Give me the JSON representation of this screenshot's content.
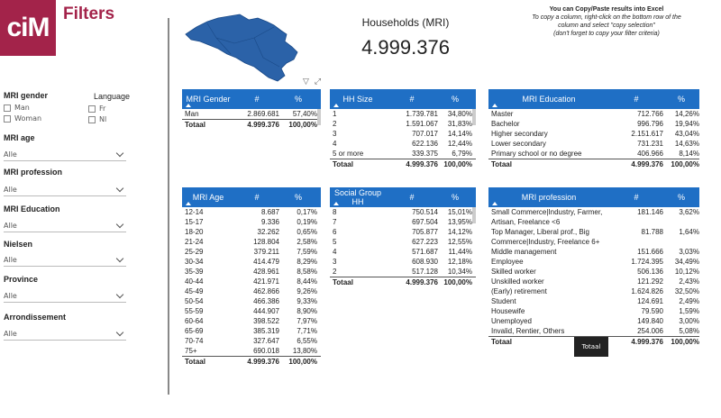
{
  "brand": {
    "logo_text": "ciM",
    "title": "Filters"
  },
  "filters": {
    "gender_label": "MRI gender",
    "gender_options": [
      "Man",
      "Woman"
    ],
    "language_label": "Language",
    "language_options": [
      "Fr",
      "Nl"
    ],
    "age_label": "MRI age",
    "age_value": "Alle",
    "profession_label": "MRI profession",
    "profession_value": "Alle",
    "education_label": "MRI Education",
    "education_value": "Alle",
    "nielsen_label": "Nielsen",
    "nielsen_value": "Alle",
    "province_label": "Province",
    "province_value": "Alle",
    "arrondissement_label": "Arrondissement",
    "arrondissement_value": "Alle"
  },
  "kpi": {
    "title": "Households (MRI)",
    "value": "4.999.376"
  },
  "note": {
    "heading": "You can Copy/Paste results into Excel",
    "line1": "To copy a column, right-click on the bottom row of the",
    "line2": "column and select \"copy selection\"",
    "line3": "(don't forget to copy your filter criteria)"
  },
  "tables": {
    "gender": {
      "title": "MRI Gender",
      "col2": "#",
      "col3": "%",
      "rows": [
        [
          "Man",
          "2.869.681",
          "57,40%"
        ]
      ],
      "total": [
        "Totaal",
        "4.999.376",
        "100,00%"
      ]
    },
    "hhsize": {
      "title": "HH Size",
      "col2": "#",
      "col3": "%",
      "rows": [
        [
          "1",
          "1.739.781",
          "34,80%"
        ],
        [
          "2",
          "1.591.067",
          "31,83%"
        ],
        [
          "3",
          "707.017",
          "14,14%"
        ],
        [
          "4",
          "622.136",
          "12,44%"
        ],
        [
          "5 or more",
          "339.375",
          "6,79%"
        ]
      ],
      "total": [
        "Totaal",
        "4.999.376",
        "100,00%"
      ]
    },
    "education": {
      "title": "MRI Education",
      "col2": "#",
      "col3": "%",
      "rows": [
        [
          "Master",
          "712.766",
          "14,26%"
        ],
        [
          "Bachelor",
          "996.796",
          "19,94%"
        ],
        [
          "Higher secondary",
          "2.151.617",
          "43,04%"
        ],
        [
          "Lower secondary",
          "731.231",
          "14,63%"
        ],
        [
          "Primary school or no degree",
          "406.966",
          "8,14%"
        ]
      ],
      "total": [
        "Totaal",
        "4.999.376",
        "100,00%"
      ]
    },
    "age": {
      "title": "MRI Age",
      "col2": "#",
      "col3": "%",
      "rows": [
        [
          "12-14",
          "8.687",
          "0,17%"
        ],
        [
          "15-17",
          "9.336",
          "0,19%"
        ],
        [
          "18-20",
          "32.262",
          "0,65%"
        ],
        [
          "21-24",
          "128.804",
          "2,58%"
        ],
        [
          "25-29",
          "379.211",
          "7,59%"
        ],
        [
          "30-34",
          "414.479",
          "8,29%"
        ],
        [
          "35-39",
          "428.961",
          "8,58%"
        ],
        [
          "40-44",
          "421.971",
          "8,44%"
        ],
        [
          "45-49",
          "462.866",
          "9,26%"
        ],
        [
          "50-54",
          "466.386",
          "9,33%"
        ],
        [
          "55-59",
          "444.907",
          "8,90%"
        ],
        [
          "60-64",
          "398.522",
          "7,97%"
        ],
        [
          "65-69",
          "385.319",
          "7,71%"
        ],
        [
          "70-74",
          "327.647",
          "6,55%"
        ],
        [
          "75+",
          "690.018",
          "13,80%"
        ]
      ],
      "total": [
        "Totaal",
        "4.999.376",
        "100,00%"
      ]
    },
    "social": {
      "title": "Social Group HH",
      "col2": "#",
      "col3": "%",
      "rows": [
        [
          "8",
          "750.514",
          "15,01%"
        ],
        [
          "7",
          "697.504",
          "13,95%"
        ],
        [
          "6",
          "705.877",
          "14,12%"
        ],
        [
          "5",
          "627.223",
          "12,55%"
        ],
        [
          "4",
          "571.687",
          "11,44%"
        ],
        [
          "3",
          "608.930",
          "12,18%"
        ],
        [
          "2",
          "517.128",
          "10,34%"
        ]
      ],
      "total": [
        "Totaal",
        "4.999.376",
        "100,00%"
      ]
    },
    "profession": {
      "title": "MRI profession",
      "col2": "#",
      "col3": "%",
      "rows": [
        [
          "Small Commerce|Industry, Farmer, Artisan, Freelance <6",
          "181.146",
          "3,62%"
        ],
        [
          "Top Manager, Liberal prof., Big Commerce|Industry, Freelance 6+",
          "81.788",
          "1,64%"
        ],
        [
          "Middle management",
          "151.666",
          "3,03%"
        ],
        [
          "Employee",
          "1.724.395",
          "34,49%"
        ],
        [
          "Skilled worker",
          "506.136",
          "10,12%"
        ],
        [
          "Unskilled worker",
          "121.292",
          "2,43%"
        ],
        [
          "(Early) retirement",
          "1.624.826",
          "32,50%"
        ],
        [
          "Student",
          "124.691",
          "2,49%"
        ],
        [
          "Housewife",
          "79.590",
          "1,59%"
        ],
        [
          "Unemployed",
          "149.840",
          "3,00%"
        ],
        [
          "Invalid, Rentier, Others",
          "254.006",
          "5,08%"
        ]
      ],
      "total": [
        "Totaal",
        "4.999.376",
        "100,00%"
      ]
    }
  },
  "tooltip": {
    "text": "Totaal"
  },
  "colors": {
    "brand": "#a3234a",
    "header": "#1f6fc5",
    "map": "#2b62a8"
  }
}
